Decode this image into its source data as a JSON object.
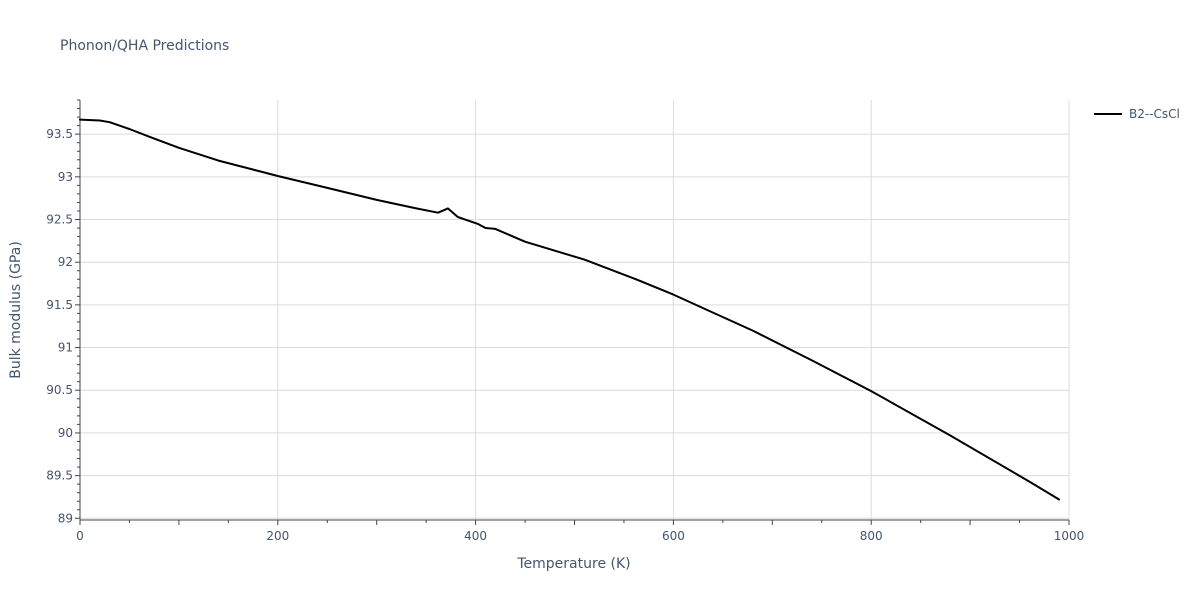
{
  "chart_data": {
    "type": "line",
    "title": "Phonon/QHA Predictions",
    "xlabel": "Temperature (K)",
    "ylabel": "Bulk modulus (GPa)",
    "xlim": [
      0,
      1000
    ],
    "ylim": [
      88.98,
      93.9
    ],
    "x_ticks": [
      0,
      200,
      400,
      600,
      800,
      1000
    ],
    "x_tick_labels": [
      "0",
      "200",
      "400",
      "600",
      "800",
      "1000"
    ],
    "y_ticks": [
      89,
      89.5,
      90,
      90.5,
      91,
      91.5,
      92,
      92.5,
      93,
      93.5
    ],
    "y_tick_labels": [
      "89",
      "89.5",
      "90",
      "90.5",
      "91",
      "91.5",
      "92",
      "92.5",
      "93",
      "93.5"
    ],
    "grid": true,
    "legend_position": "top-right",
    "series": [
      {
        "name": "B2--CsCl",
        "color": "#000000",
        "x": [
          0,
          20,
          30,
          50,
          70,
          100,
          140,
          200,
          250,
          300,
          340,
          362,
          372,
          382,
          392,
          402,
          410,
          420,
          450,
          510,
          560,
          600,
          640,
          680,
          740,
          800,
          880,
          960,
          990
        ],
        "y": [
          93.67,
          93.66,
          93.64,
          93.56,
          93.47,
          93.34,
          93.19,
          93.01,
          92.87,
          92.73,
          92.63,
          92.58,
          92.63,
          92.53,
          92.49,
          92.45,
          92.4,
          92.39,
          92.24,
          92.03,
          91.81,
          91.62,
          91.41,
          91.2,
          90.85,
          90.49,
          89.97,
          89.43,
          89.22
        ]
      }
    ]
  }
}
